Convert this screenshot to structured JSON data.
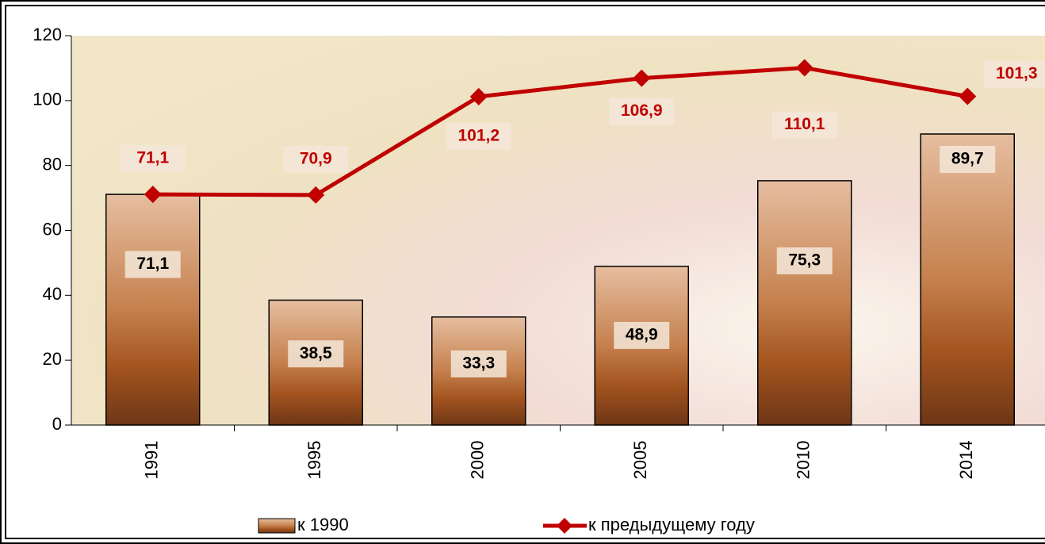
{
  "chart_data": {
    "type": "bar",
    "categories": [
      "1991",
      "1995",
      "2000",
      "2005",
      "2010",
      "2014"
    ],
    "series": [
      {
        "name": "к 1990",
        "type": "bar",
        "color": "#a8643a",
        "values": [
          71.1,
          38.5,
          33.3,
          48.9,
          75.3,
          89.7
        ],
        "value_labels": [
          "71,1",
          "38,5",
          "33,3",
          "48,9",
          "75,3",
          "89,7"
        ]
      },
      {
        "name": "к предыдущему году",
        "type": "line",
        "color": "#c00000",
        "values": [
          71.1,
          70.9,
          101.2,
          106.9,
          110.1,
          101.3
        ],
        "value_labels": [
          "71,1",
          "70,9",
          "101,2",
          "106,9",
          "110,1",
          "101,3"
        ]
      }
    ],
    "ylim": [
      0,
      120
    ],
    "yticks": [
      0,
      20,
      40,
      60,
      80,
      100,
      120
    ],
    "legend": "bottom"
  }
}
